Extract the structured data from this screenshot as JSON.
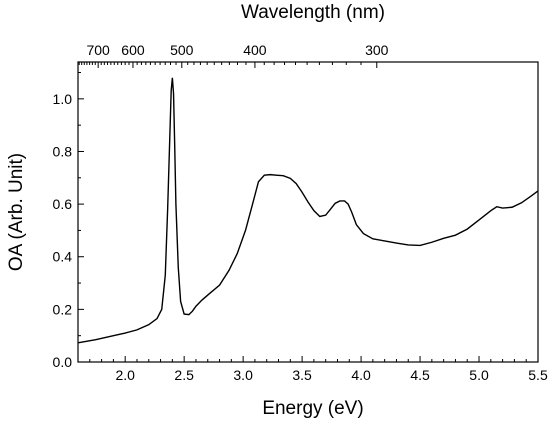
{
  "chart_data": {
    "type": "line",
    "xlabel": "Energy (eV)",
    "ylabel": "OA (Arb. Unit)",
    "top_axis_label": "Wavelength (nm)",
    "xlim": [
      1.6,
      5.5
    ],
    "ylim": [
      0.0,
      1.14
    ],
    "x_ticks": [
      "2.0",
      "2.5",
      "3.0",
      "3.5",
      "4.0",
      "4.5",
      "5.0",
      "5.5"
    ],
    "y_ticks": [
      "0.0",
      "0.2",
      "0.4",
      "0.6",
      "0.8",
      "1.0"
    ],
    "top_ticks": [
      {
        "label": "700",
        "energy_ev": 1.771
      },
      {
        "label": "600",
        "energy_ev": 2.066
      },
      {
        "label": "500",
        "energy_ev": 2.48
      },
      {
        "label": "400",
        "energy_ev": 3.1
      },
      {
        "label": "300",
        "energy_ev": 4.133
      }
    ],
    "line_color": "#000000",
    "grid": false,
    "series": [
      {
        "x": [
          1.6,
          1.75,
          1.9,
          2.0,
          2.1,
          2.2,
          2.27,
          2.31,
          2.34,
          2.36,
          2.38,
          2.39,
          2.4,
          2.41,
          2.42,
          2.43,
          2.45,
          2.47,
          2.5,
          2.54,
          2.57,
          2.6,
          2.65,
          2.72,
          2.8,
          2.88,
          2.95,
          3.02,
          3.08,
          3.13,
          3.18,
          3.23,
          3.28,
          3.34,
          3.4,
          3.45,
          3.5,
          3.55,
          3.6,
          3.65,
          3.7,
          3.74,
          3.78,
          3.82,
          3.86,
          3.89,
          3.92,
          3.96,
          4.02,
          4.1,
          4.2,
          4.3,
          4.4,
          4.5,
          4.6,
          4.7,
          4.8,
          4.9,
          5.0,
          5.1,
          5.15,
          5.2,
          5.28,
          5.36,
          5.44,
          5.5
        ],
        "y": [
          0.073,
          0.085,
          0.1,
          0.11,
          0.122,
          0.142,
          0.165,
          0.2,
          0.33,
          0.58,
          0.88,
          1.03,
          1.08,
          1.02,
          0.82,
          0.6,
          0.36,
          0.23,
          0.182,
          0.18,
          0.193,
          0.212,
          0.235,
          0.262,
          0.292,
          0.348,
          0.412,
          0.5,
          0.6,
          0.685,
          0.71,
          0.712,
          0.71,
          0.708,
          0.698,
          0.678,
          0.645,
          0.608,
          0.575,
          0.553,
          0.558,
          0.58,
          0.603,
          0.612,
          0.612,
          0.6,
          0.57,
          0.522,
          0.488,
          0.468,
          0.46,
          0.452,
          0.445,
          0.443,
          0.455,
          0.47,
          0.482,
          0.505,
          0.54,
          0.575,
          0.59,
          0.585,
          0.588,
          0.605,
          0.63,
          0.65
        ]
      }
    ]
  }
}
